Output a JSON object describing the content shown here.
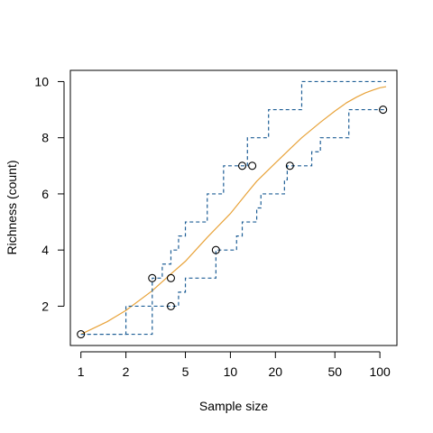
{
  "chart_data": {
    "type": "line",
    "title": "",
    "xlabel": "Sample size",
    "ylabel": "Richness (count)",
    "x_scale": "log",
    "xlim": [
      0.85,
      130
    ],
    "ylim": [
      0.6,
      10.4
    ],
    "x_ticks": [
      1,
      2,
      5,
      10,
      20,
      50,
      100
    ],
    "y_ticks": [
      2,
      4,
      6,
      8,
      10
    ],
    "grid": false,
    "legend": "none",
    "colors": {
      "estimate": "#e8a33a",
      "bounds": "#1f5f96",
      "points": "#000000"
    },
    "series": [
      {
        "role": "estimate",
        "style": "solid",
        "x": [
          1,
          1.5,
          2,
          3,
          4,
          5,
          7,
          10,
          13,
          15,
          20,
          25,
          30,
          40,
          50,
          60,
          70,
          80,
          90,
          100,
          110
        ],
        "y": [
          1,
          1.45,
          1.85,
          2.55,
          3.15,
          3.6,
          4.45,
          5.3,
          6.05,
          6.45,
          7.1,
          7.6,
          8.0,
          8.55,
          8.95,
          9.25,
          9.45,
          9.6,
          9.7,
          9.78,
          9.82
        ]
      },
      {
        "role": "upper",
        "style": "dashed",
        "x": [
          1,
          2,
          3,
          3.5,
          4,
          4.5,
          5,
          6,
          7,
          8,
          9,
          10,
          11,
          12,
          13,
          14,
          15,
          17,
          18,
          20,
          23,
          25,
          28,
          30,
          40,
          50,
          60,
          70,
          80,
          110
        ],
        "y": [
          1,
          2,
          3,
          3.5,
          4,
          4.5,
          5,
          5,
          6,
          6,
          7,
          7,
          7,
          7,
          8,
          8,
          8,
          8,
          9,
          9,
          9,
          9,
          9,
          10,
          10,
          10,
          10,
          10,
          10,
          10
        ]
      },
      {
        "role": "lower",
        "style": "dashed",
        "x": [
          1,
          2,
          3,
          4,
          4.5,
          5,
          6,
          7,
          8,
          9,
          10,
          11,
          12,
          13,
          14,
          15,
          16,
          18,
          20,
          22,
          23,
          24,
          25,
          27,
          30,
          35,
          40,
          50,
          60,
          62,
          70,
          80,
          100,
          110
        ],
        "y": [
          1,
          1,
          2,
          2,
          2.5,
          3,
          3,
          3,
          4,
          4,
          4,
          4.5,
          5,
          5,
          5,
          5.5,
          6,
          6,
          6,
          6,
          6.5,
          7,
          7,
          7,
          7,
          7.5,
          8,
          8,
          8,
          9,
          9,
          9,
          9,
          9
        ]
      }
    ],
    "points": [
      {
        "x": 1,
        "y": 1
      },
      {
        "x": 3,
        "y": 3
      },
      {
        "x": 4,
        "y": 3
      },
      {
        "x": 4,
        "y": 2
      },
      {
        "x": 8,
        "y": 4
      },
      {
        "x": 12,
        "y": 7
      },
      {
        "x": 14,
        "y": 7
      },
      {
        "x": 25,
        "y": 7
      },
      {
        "x": 105,
        "y": 9
      }
    ]
  }
}
